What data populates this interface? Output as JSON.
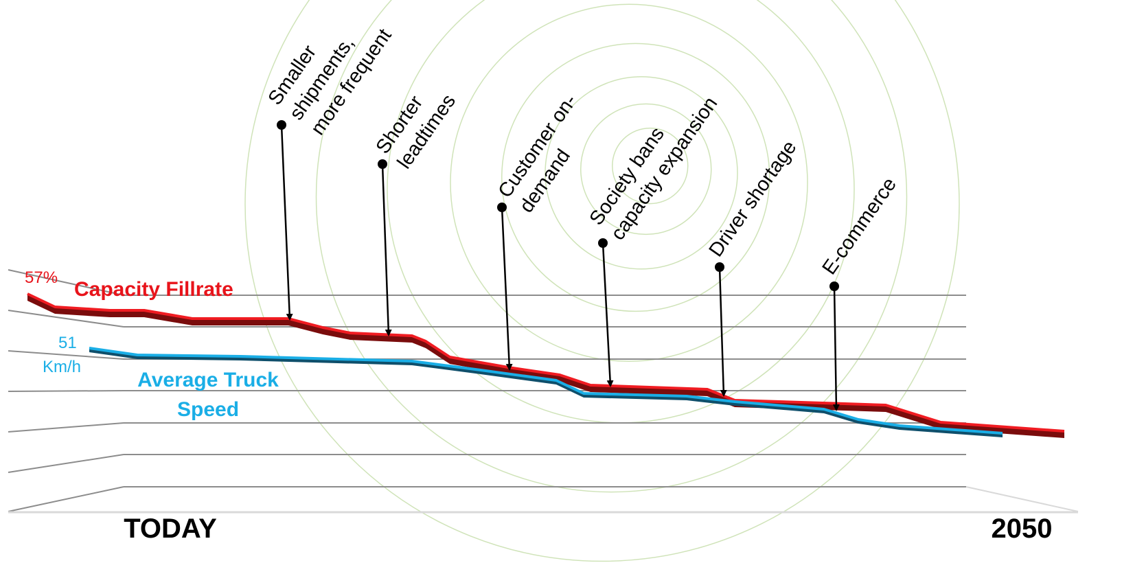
{
  "trend_labels": {
    "fillrate_value": "57%",
    "fillrate_name": "Capacity Fillrate",
    "speed_value": "51",
    "speed_unit": "Km/h",
    "speed_name": [
      "Average Truck",
      "Speed"
    ]
  },
  "drivers": [
    {
      "lines": [
        "Smaller",
        "shipments,",
        "more frequent"
      ]
    },
    {
      "lines": [
        "Shorter",
        "leadtimes"
      ]
    },
    {
      "lines": [
        "Customer on-",
        "demand"
      ]
    },
    {
      "lines": [
        "Society bans",
        "capacity expansion"
      ]
    },
    {
      "lines": [
        "Driver shortage"
      ]
    },
    {
      "lines": [
        "E-commerce"
      ]
    }
  ],
  "timeline": {
    "start": "TODAY",
    "end": "2050"
  }
}
